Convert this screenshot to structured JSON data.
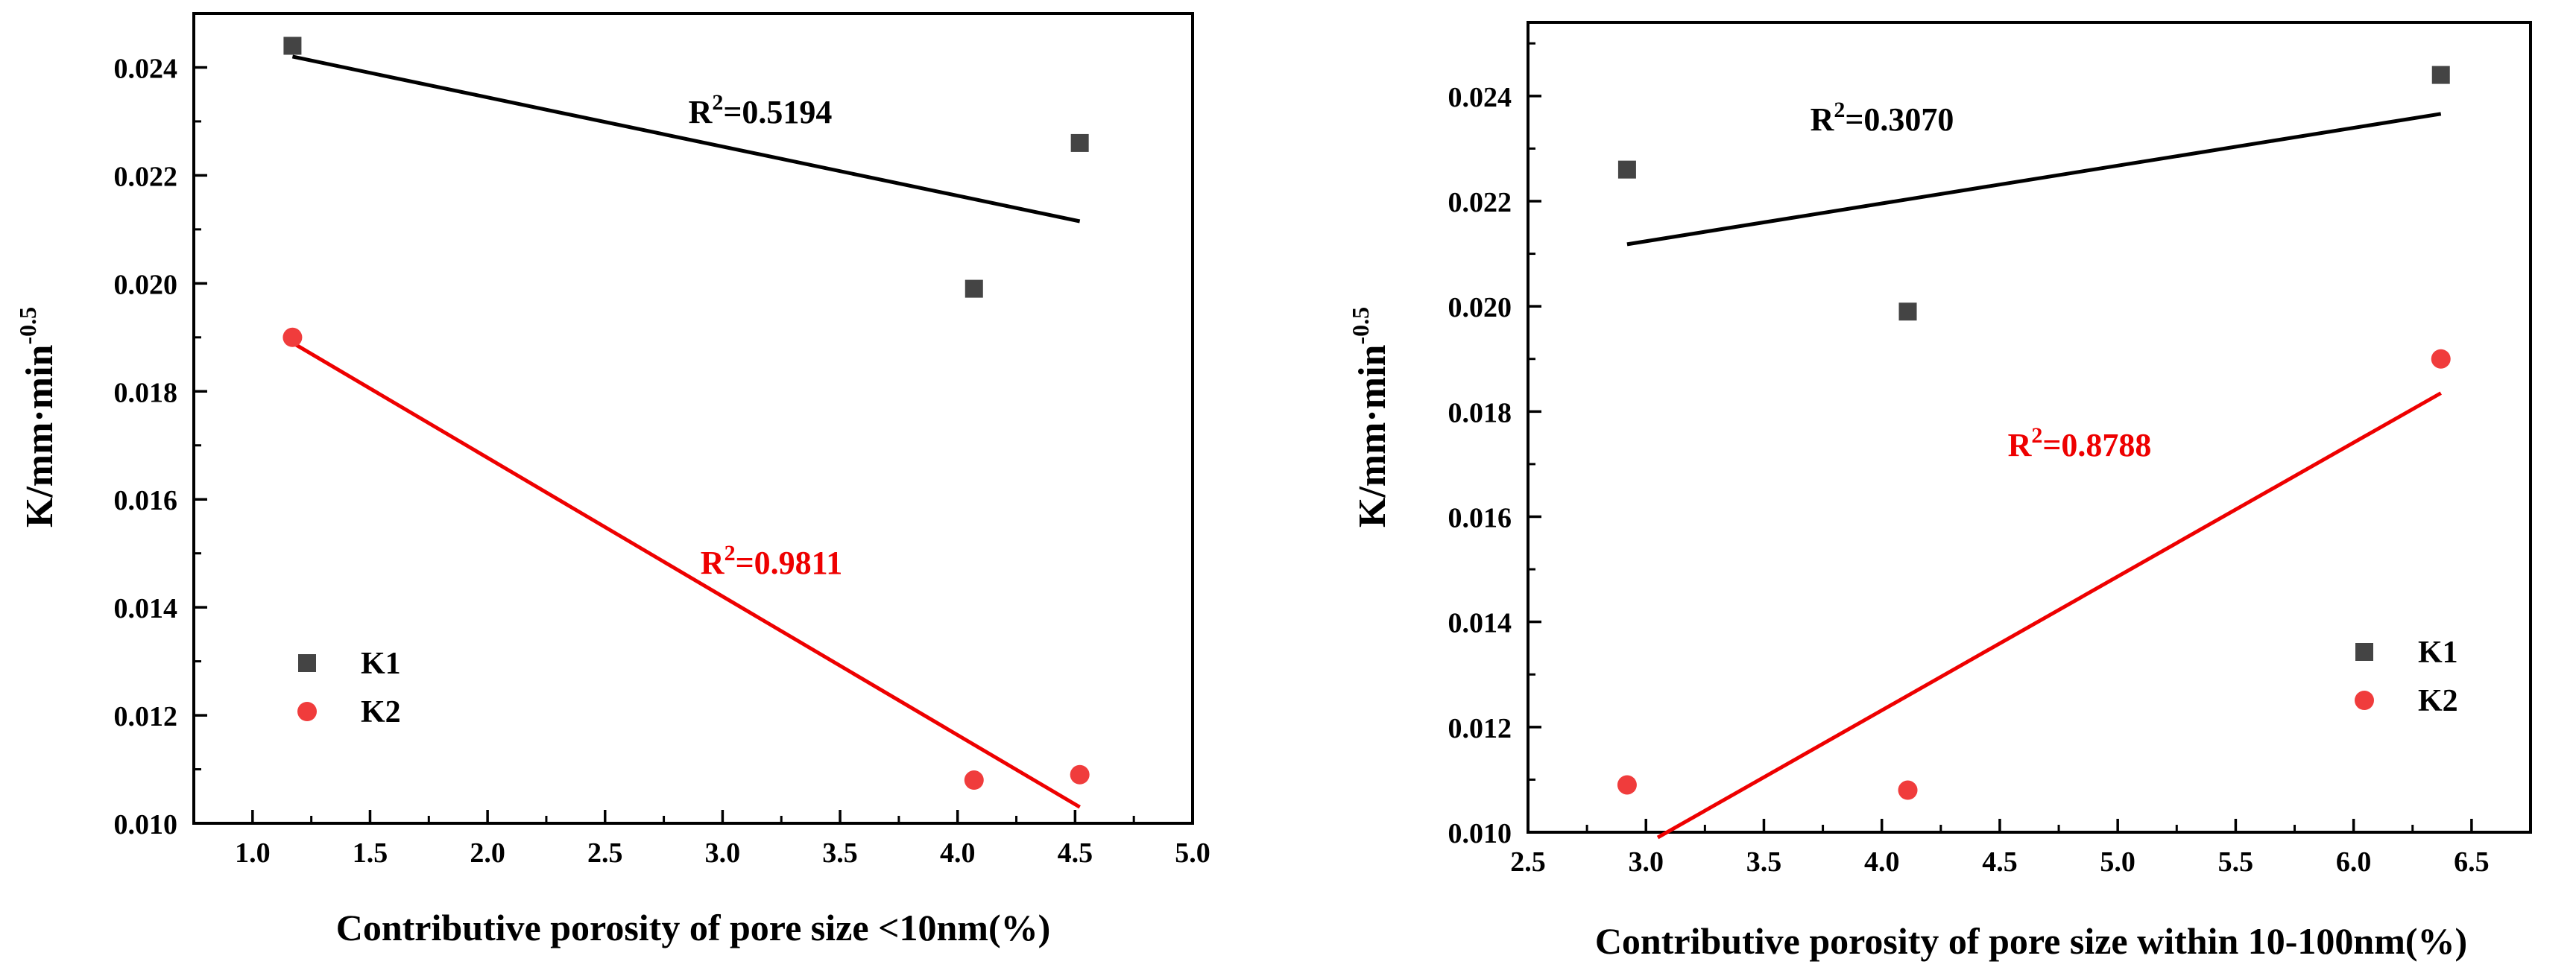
{
  "chart_data": [
    {
      "type": "scatter",
      "title": "",
      "xlabel": "Contributive porosity of pore size <10nm(%)",
      "ylabel_base": "K/mm·min",
      "ylabel_exp": "-0.5",
      "xlim": [
        0.75,
        5.0
      ],
      "ylim": [
        0.01,
        0.025
      ],
      "xticks": [
        1.0,
        1.5,
        2.0,
        2.5,
        3.0,
        3.5,
        4.0,
        4.5,
        5.0
      ],
      "xtick_labels": [
        "1.0",
        "1.5",
        "2.0",
        "2.5",
        "3.0",
        "3.5",
        "4.0",
        "4.5",
        "5.0"
      ],
      "yticks": [
        0.01,
        0.012,
        0.014,
        0.016,
        0.018,
        0.02,
        0.022,
        0.024
      ],
      "ytick_labels": [
        "0.010",
        "0.012",
        "0.014",
        "0.016",
        "0.018",
        "0.020",
        "0.022",
        "0.024"
      ],
      "legend_position": "left",
      "series": [
        {
          "name": "K1",
          "marker": "square",
          "color": "#444444",
          "x": [
            1.17,
            4.07,
            4.52
          ],
          "y": [
            0.0244,
            0.0199,
            0.0226
          ],
          "fit": {
            "x": [
              1.17,
              4.52
            ],
            "y": [
              0.0242,
              0.02115
            ],
            "color": "#000000"
          },
          "r2_label": "R",
          "r2_sup": "2",
          "r2_value": "=0.5194"
        },
        {
          "name": "K2",
          "marker": "circle",
          "color": "#f03c3c",
          "x": [
            1.17,
            4.07,
            4.52
          ],
          "y": [
            0.019,
            0.0108,
            0.0109
          ],
          "fit": {
            "x": [
              1.17,
              4.52
            ],
            "y": [
              0.0189,
              0.0103
            ],
            "color": "#ee0000"
          },
          "r2_label": "R",
          "r2_sup": "2",
          "r2_value": "=0.9811"
        }
      ]
    },
    {
      "type": "scatter",
      "title": "",
      "xlabel": "Contributive porosity of pore size within 10-100nm(%)",
      "ylabel_base": "K/mm·min",
      "ylabel_exp": "-0.5",
      "xlim": [
        2.5,
        6.75
      ],
      "ylim": [
        0.01,
        0.0254
      ],
      "xticks": [
        2.5,
        3.0,
        3.5,
        4.0,
        4.5,
        5.0,
        5.5,
        6.0,
        6.5
      ],
      "xtick_labels": [
        "2.5",
        "3.0",
        "3.5",
        "4.0",
        "4.5",
        "5.0",
        "5.5",
        "6.0",
        "6.5"
      ],
      "yticks": [
        0.01,
        0.012,
        0.014,
        0.016,
        0.018,
        0.02,
        0.022,
        0.024
      ],
      "ytick_labels": [
        "0.010",
        "0.012",
        "0.014",
        "0.016",
        "0.018",
        "0.020",
        "0.022",
        "0.024"
      ],
      "legend_position": "right",
      "series": [
        {
          "name": "K1",
          "marker": "square",
          "color": "#444444",
          "x": [
            2.92,
            4.11,
            6.37
          ],
          "y": [
            0.0226,
            0.0199,
            0.0244
          ],
          "fit": {
            "x": [
              2.92,
              6.37
            ],
            "y": [
              0.02118,
              0.02366
            ],
            "color": "#000000"
          },
          "r2_label": "R",
          "r2_sup": "2",
          "r2_value": "=0.3070"
        },
        {
          "name": "K2",
          "marker": "circle",
          "color": "#f03c3c",
          "x": [
            2.92,
            4.11,
            6.37
          ],
          "y": [
            0.0109,
            0.0108,
            0.019
          ],
          "fit": {
            "x": [
              3.05,
              6.37
            ],
            "y": [
              0.0099,
              0.01835
            ],
            "color": "#ee0000"
          },
          "r2_label": "R",
          "r2_sup": "2",
          "r2_value": "=0.8788"
        }
      ]
    }
  ]
}
